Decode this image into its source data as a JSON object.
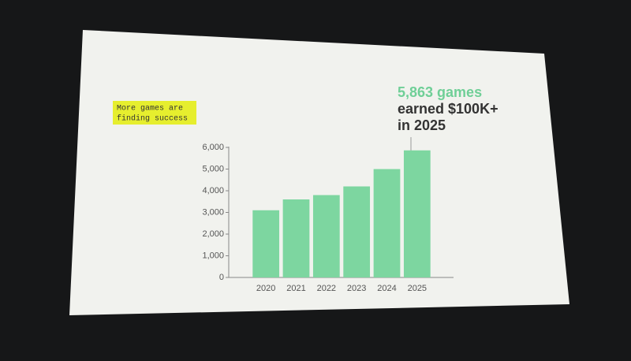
{
  "chart_data": {
    "type": "bar",
    "callout": [
      "More games are",
      "finding success"
    ],
    "annotation": [
      "5,863 games",
      "earned $100K+",
      "in 2025"
    ],
    "categories": [
      "2020",
      "2021",
      "2022",
      "2023",
      "2024",
      "2025"
    ],
    "values": [
      3100,
      3600,
      3800,
      4200,
      5000,
      5863
    ],
    "color": "#7dd6a0",
    "ylim": [
      0,
      6000
    ],
    "yticks": [
      0,
      {
        "value": 1000,
        "label": "1,000"
      },
      {
        "value": 2000,
        "label": "2,000"
      },
      {
        "value": 3000,
        "label": "3,000"
      },
      {
        "value": 4000,
        "label": "4,000"
      },
      {
        "value": 5000,
        "label": "5,000"
      },
      {
        "value": 6000,
        "label": "6,000"
      }
    ],
    "grid": false
  }
}
